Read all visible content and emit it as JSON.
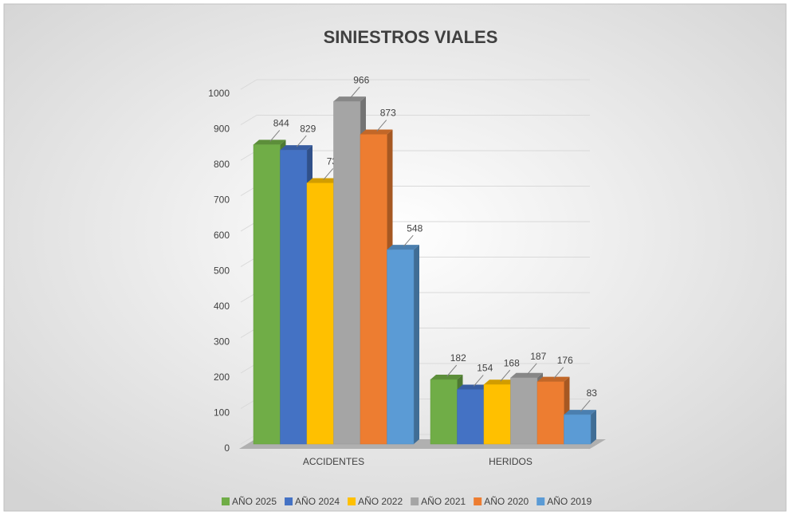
{
  "chart_data": {
    "type": "bar",
    "title": "SINIESTROS VIALES",
    "categories": [
      "ACCIDENTES",
      "HERIDOS"
    ],
    "series": [
      {
        "name": "AÑO 2025",
        "color": "#70ad47",
        "values": [
          844,
          182
        ]
      },
      {
        "name": "AÑO 2024",
        "color": "#4472c4",
        "values": [
          829,
          154
        ]
      },
      {
        "name": "AÑO 2022",
        "color": "#ffc000",
        "values": [
          736,
          168
        ]
      },
      {
        "name": "AÑO 2021",
        "color": "#a5a5a5",
        "values": [
          966,
          187
        ]
      },
      {
        "name": "AÑO 2020",
        "color": "#ed7d31",
        "values": [
          873,
          176
        ]
      },
      {
        "name": "AÑO 2019",
        "color": "#5b9bd5",
        "values": [
          548,
          83
        ]
      }
    ],
    "ylim": [
      0,
      1000
    ],
    "yticks": [
      0,
      100,
      200,
      300,
      400,
      500,
      600,
      700,
      800,
      900,
      1000
    ],
    "grid": true,
    "legend": "bottom"
  }
}
